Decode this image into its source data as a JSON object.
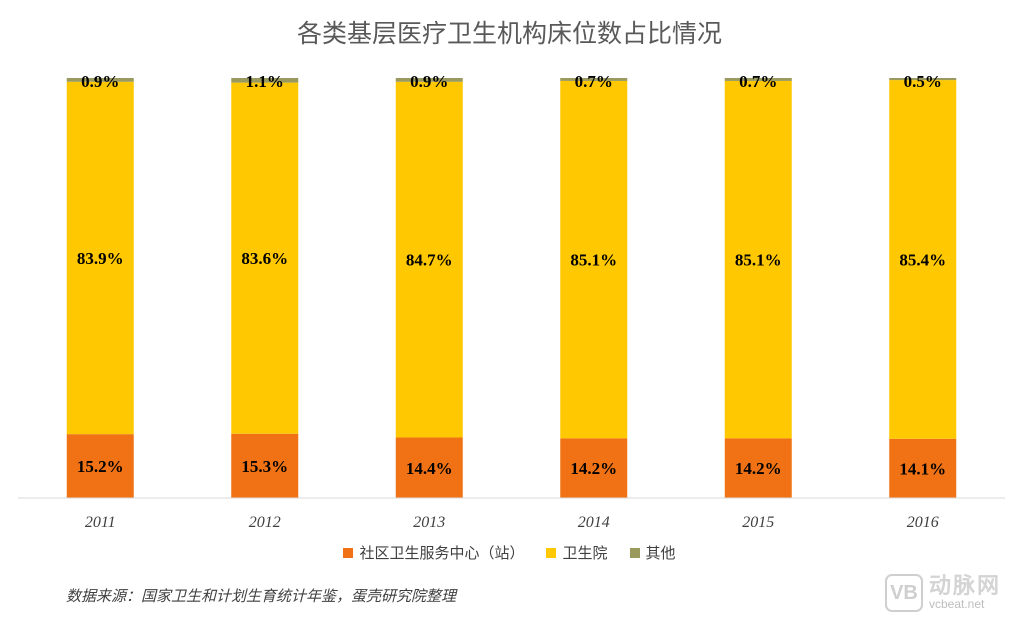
{
  "chart_data": {
    "type": "bar",
    "stacked": true,
    "title": "各类基层医疗卫生机构床位数占比情况",
    "categories": [
      "2011",
      "2012",
      "2013",
      "2014",
      "2015",
      "2016"
    ],
    "series": [
      {
        "name": "社区卫生服务中心（站）",
        "color": "#f07214",
        "values": [
          15.2,
          15.3,
          14.4,
          14.2,
          14.2,
          14.1
        ],
        "labels": [
          "15.2%",
          "15.3%",
          "14.4%",
          "14.2%",
          "14.2%",
          "14.1%"
        ]
      },
      {
        "name": "卫生院",
        "color": "#ffc800",
        "values": [
          83.9,
          83.6,
          84.7,
          85.1,
          85.1,
          85.4
        ],
        "labels": [
          "83.9%",
          "83.6%",
          "84.7%",
          "85.1%",
          "85.1%",
          "85.4%"
        ]
      },
      {
        "name": "其他",
        "color": "#9a9a5e",
        "values": [
          0.9,
          1.1,
          0.9,
          0.7,
          0.7,
          0.5
        ],
        "labels": [
          "0.9%",
          "1.1%",
          "0.9%",
          "0.7%",
          "0.7%",
          "0.5%"
        ]
      }
    ],
    "ylim": [
      0,
      100
    ],
    "grid": false,
    "legend": "bottom"
  },
  "source_note": "数据来源：国家卫生和计划生育统计年鉴，蛋壳研究院整理",
  "watermark": {
    "cn": "动脉网",
    "en": "vcbeat.net"
  }
}
